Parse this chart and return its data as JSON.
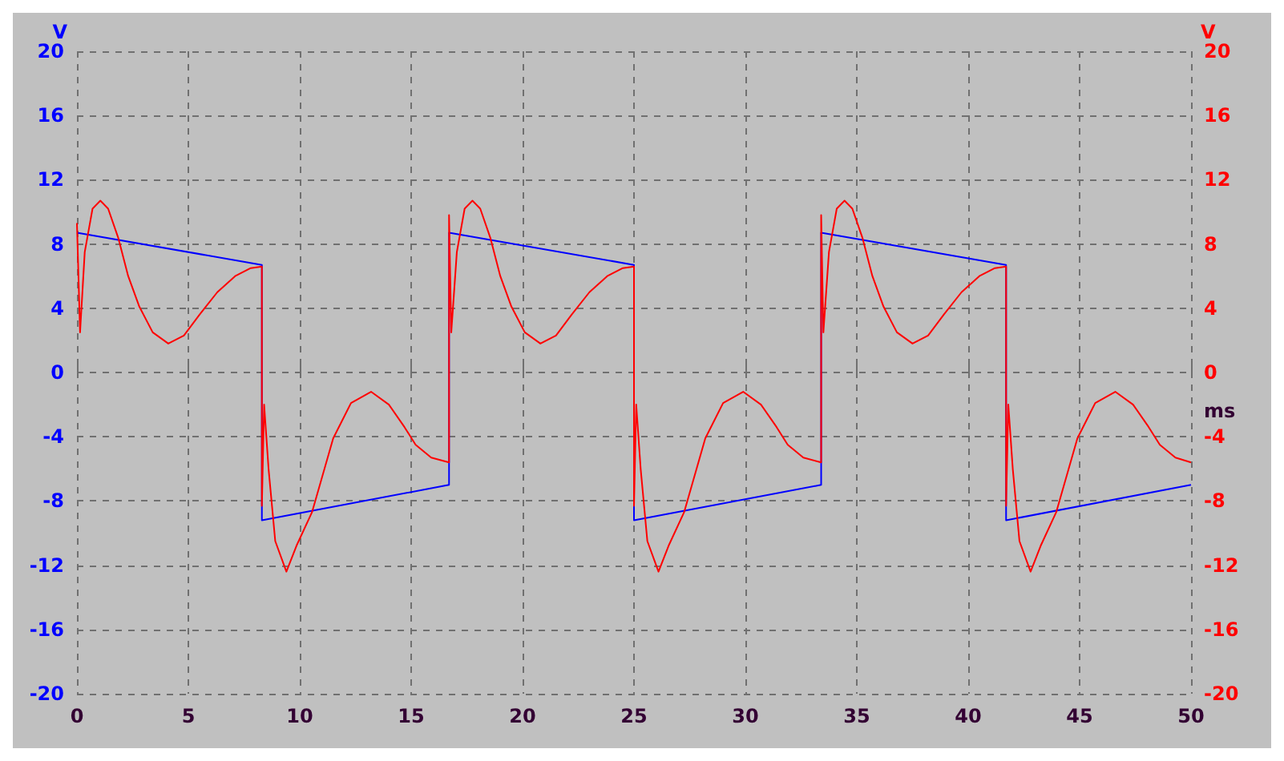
{
  "chart_data": {
    "type": "line",
    "xlabel": "ms",
    "ylabel": "V",
    "y2label": "V",
    "xlim": [
      0,
      50
    ],
    "xticks": [
      0,
      5,
      10,
      15,
      20,
      25,
      30,
      35,
      40,
      45,
      50
    ],
    "ylim": [
      -20,
      20
    ],
    "yticks": [
      -20,
      -16,
      -12,
      -8,
      -4,
      0,
      4,
      8,
      12,
      16,
      20
    ],
    "y2lim": [
      -20,
      20
    ],
    "y2ticks": [
      -20,
      -16,
      -12,
      -8,
      -4,
      0,
      4,
      8,
      12,
      16,
      20
    ],
    "grid": true,
    "marker": "none",
    "line_style": "solid",
    "series": [
      {
        "color": "#0000ff",
        "x": [
          0,
          8.3,
          8.3,
          16.7,
          16.7,
          25.0,
          25.0,
          33.4,
          33.4,
          41.7,
          41.7,
          50
        ],
        "values": [
          8.7,
          6.7,
          -9.2,
          -7.0,
          8.7,
          6.7,
          -9.2,
          -7.0,
          8.7,
          6.7,
          -9.2,
          -7.0
        ]
      },
      {
        "color": "#ff0000",
        "axis": "y2",
        "x": [
          0,
          0.14,
          0.35,
          0.7,
          1.05,
          1.4,
          1.85,
          2.3,
          2.8,
          3.4,
          4.1,
          4.8,
          5.5,
          6.3,
          7.1,
          7.8,
          8.3,
          8.3,
          8.4,
          8.6,
          8.9,
          9.4,
          9.85,
          10.55,
          11.5,
          12.3,
          13.2,
          14.0,
          14.7,
          15.2,
          15.9,
          16.7,
          16.7,
          16.8,
          17.05,
          17.4,
          17.75,
          18.1,
          18.55,
          19.0,
          19.5,
          20.1,
          20.8,
          21.5,
          22.2,
          23.0,
          23.8,
          24.5,
          25.0,
          25.0,
          25.1,
          25.3,
          25.6,
          26.1,
          26.55,
          27.25,
          28.2,
          29.0,
          29.9,
          30.7,
          31.4,
          31.9,
          32.6,
          33.4,
          33.4,
          33.5,
          33.75,
          34.1,
          34.45,
          34.8,
          35.25,
          35.7,
          36.2,
          36.8,
          37.5,
          38.2,
          38.9,
          39.7,
          40.5,
          41.2,
          41.7,
          41.7,
          41.8,
          42.0,
          42.3,
          42.8,
          43.25,
          43.95,
          44.9,
          45.7,
          46.6,
          47.4,
          48.1,
          48.6,
          49.3,
          50
        ],
        "values": [
          9.3,
          2.5,
          7.5,
          10.2,
          10.7,
          10.2,
          8.4,
          6,
          4.1,
          2.5,
          1.8,
          2.3,
          3.6,
          5.0,
          6.0,
          6.5,
          6.6,
          -8.3,
          -2.0,
          -6,
          -10.5,
          -12.4,
          -10.8,
          -8.7,
          -4.1,
          -1.9,
          -1.2,
          -2.0,
          -3.4,
          -4.5,
          -5.3,
          -5.6,
          9.8,
          2.5,
          7.5,
          10.2,
          10.7,
          10.2,
          8.4,
          6,
          4.1,
          2.5,
          1.8,
          2.3,
          3.6,
          5.0,
          6.0,
          6.5,
          6.6,
          -8.3,
          -2.0,
          -6,
          -10.5,
          -12.4,
          -10.8,
          -8.7,
          -4.1,
          -1.9,
          -1.2,
          -2.0,
          -3.4,
          -4.5,
          -5.3,
          -5.6,
          9.8,
          2.5,
          7.5,
          10.2,
          10.7,
          10.2,
          8.4,
          6,
          4.1,
          2.5,
          1.8,
          2.3,
          3.6,
          5.0,
          6.0,
          6.5,
          6.6,
          -8.3,
          -2.0,
          -6,
          -10.5,
          -12.4,
          -10.8,
          -8.7,
          -4.1,
          -1.9,
          -1.2,
          -2.0,
          -3.4,
          -4.5,
          -5.3,
          -5.6
        ]
      }
    ]
  }
}
